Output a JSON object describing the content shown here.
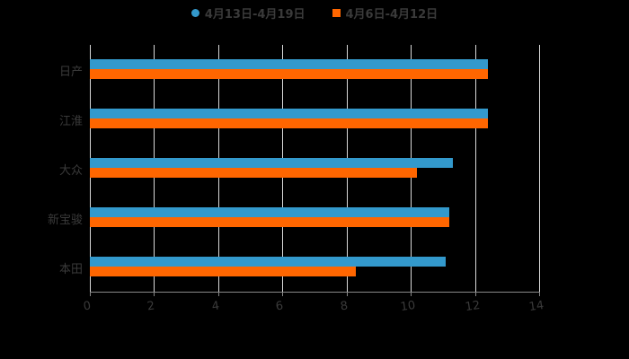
{
  "legend": [
    {
      "label": "4月13日-4月19日",
      "color": "#3399cc",
      "shape": "circle"
    },
    {
      "label": "4月6日-4月12日",
      "color": "#ff6600",
      "shape": "square"
    }
  ],
  "axis": {
    "ticks": [
      "0",
      "2",
      "4",
      "6",
      "8",
      "10",
      "12",
      "14"
    ]
  },
  "chart_data": {
    "type": "bar",
    "orientation": "horizontal",
    "title": "",
    "categories": [
      "日产",
      "江淮",
      "大众",
      "新宝骏",
      "本田"
    ],
    "series": [
      {
        "name": "4月13日-4月19日",
        "color": "#3399cc",
        "values": [
          12.4,
          12.4,
          11.3,
          11.2,
          11.1
        ]
      },
      {
        "name": "4月6日-4月12日",
        "color": "#ff6600",
        "values": [
          12.4,
          12.4,
          10.2,
          11.2,
          8.3
        ]
      }
    ],
    "xlabel": "",
    "ylabel": "",
    "xlim": [
      0,
      14
    ],
    "xticks": [
      0,
      2,
      4,
      6,
      8,
      10,
      12,
      14
    ],
    "grid": true,
    "legend_position": "top"
  }
}
